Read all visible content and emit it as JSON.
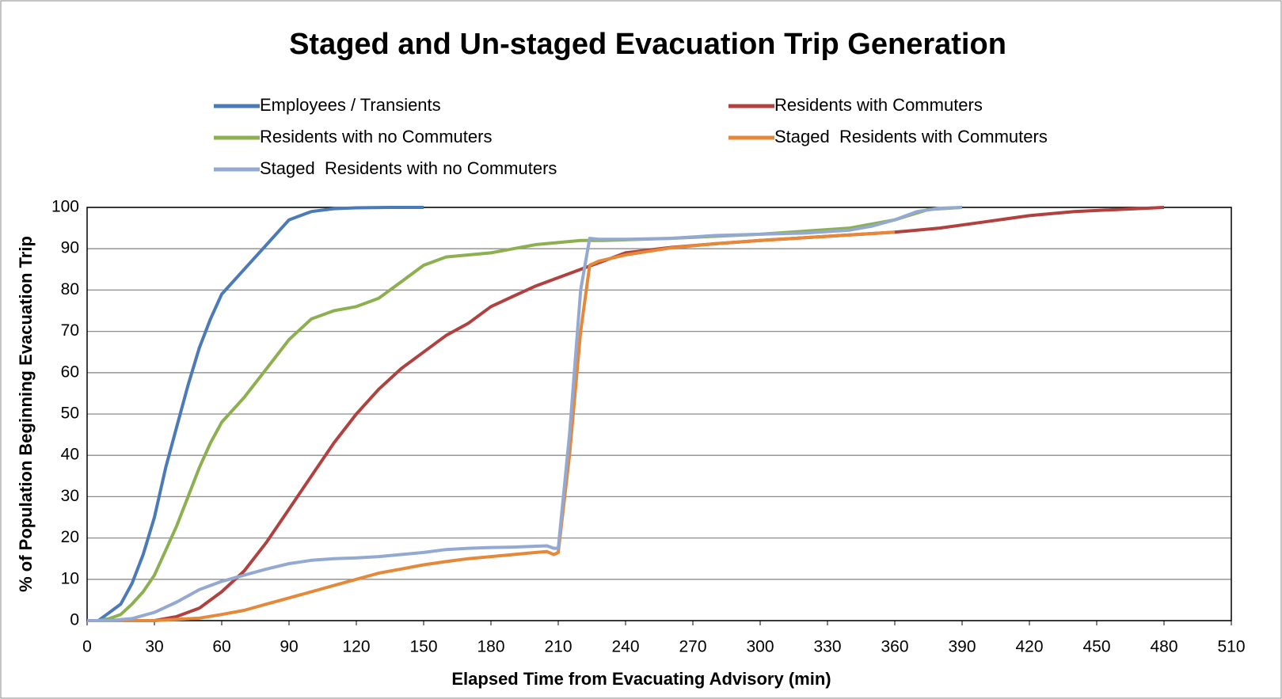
{
  "chart_data": {
    "type": "line",
    "title": "Staged and Un-staged Evacuation Trip Generation",
    "x_label": "Elapsed Time from Evacuating Advisory (min)",
    "y_label": "% of Population Beginning Evacuation Trip",
    "xlim": [
      0,
      510
    ],
    "xticks": [
      0,
      30,
      60,
      90,
      120,
      150,
      180,
      210,
      240,
      270,
      300,
      330,
      360,
      390,
      420,
      450,
      480,
      510
    ],
    "ylim": [
      0,
      100
    ],
    "yticks": [
      0,
      10,
      20,
      30,
      40,
      50,
      60,
      70,
      80,
      90,
      100
    ],
    "grid": true,
    "series": [
      {
        "name": "Employees / Transients",
        "color": "#4a7ab8",
        "x": [
          0,
          5,
          10,
          15,
          20,
          25,
          30,
          35,
          40,
          45,
          50,
          55,
          60,
          70,
          80,
          90,
          100,
          110,
          120,
          135,
          150
        ],
        "values": [
          0,
          0,
          2,
          4,
          9,
          16,
          25,
          37,
          47,
          57,
          66,
          73,
          79,
          85,
          91,
          97,
          99,
          99.7,
          99.9,
          100,
          100
        ]
      },
      {
        "name": "Residents with Commuters",
        "color": "#b0413e",
        "x": [
          0,
          10,
          20,
          30,
          40,
          50,
          60,
          70,
          80,
          90,
          100,
          110,
          120,
          130,
          140,
          150,
          160,
          170,
          180,
          190,
          200,
          210,
          220,
          230,
          240,
          260,
          280,
          300,
          330,
          360,
          380,
          400,
          420,
          440,
          460,
          480
        ],
        "values": [
          0,
          0,
          0,
          0,
          1,
          3,
          7,
          12,
          19,
          27,
          35,
          43,
          50,
          56,
          61,
          65,
          69,
          72,
          76,
          78.5,
          81,
          83,
          85,
          87,
          89,
          90.3,
          91.2,
          92,
          93,
          94,
          95,
          96.5,
          98,
          99,
          99.5,
          100
        ]
      },
      {
        "name": "Residents with no Commuters",
        "color": "#8cb050",
        "x": [
          0,
          5,
          10,
          15,
          20,
          25,
          30,
          35,
          40,
          45,
          50,
          55,
          60,
          70,
          80,
          90,
          100,
          110,
          120,
          130,
          140,
          150,
          160,
          170,
          180,
          190,
          200,
          210,
          220,
          230,
          260,
          300,
          340,
          360,
          375,
          390
        ],
        "values": [
          0,
          0,
          0.5,
          1.5,
          4,
          7,
          11,
          17,
          23,
          30,
          37,
          43,
          48,
          54,
          61,
          68,
          73,
          75,
          76,
          78,
          82,
          86,
          88,
          88.5,
          89,
          90,
          91,
          91.5,
          92,
          92,
          92.5,
          93.5,
          95,
          97,
          99.5,
          100
        ]
      },
      {
        "name": "Staged  Residents with Commuters",
        "color": "#e5883a",
        "x": [
          0,
          30,
          40,
          50,
          60,
          70,
          80,
          90,
          100,
          110,
          120,
          130,
          140,
          150,
          160,
          170,
          180,
          190,
          200,
          205,
          208,
          210,
          215,
          220,
          224,
          228,
          240,
          260,
          280,
          300,
          330,
          360
        ],
        "values": [
          0,
          0,
          0.3,
          0.6,
          1.5,
          2.5,
          4,
          5.5,
          7,
          8.5,
          10,
          11.5,
          12.5,
          13.5,
          14.3,
          15,
          15.5,
          16,
          16.5,
          16.7,
          16,
          16.5,
          40,
          70,
          86,
          87,
          88.5,
          90.2,
          91.2,
          92,
          93,
          94
        ]
      },
      {
        "name": "Staged  Residents with no Commuters",
        "color": "#93a9d2",
        "x": [
          0,
          10,
          20,
          30,
          40,
          50,
          60,
          70,
          80,
          90,
          100,
          110,
          120,
          130,
          140,
          150,
          160,
          170,
          180,
          190,
          200,
          205,
          208,
          210,
          215,
          220,
          224,
          228,
          240,
          260,
          280,
          300,
          320,
          340,
          350,
          360,
          370,
          380,
          390
        ],
        "values": [
          0,
          0,
          0.5,
          2,
          4.5,
          7.5,
          9.5,
          11,
          12.5,
          13.8,
          14.6,
          15,
          15.2,
          15.5,
          16,
          16.5,
          17.2,
          17.5,
          17.7,
          17.8,
          18,
          18.1,
          17.5,
          17.5,
          45,
          80,
          92.5,
          92.3,
          92.3,
          92.5,
          93.2,
          93.5,
          93.8,
          94.5,
          95.5,
          97,
          99,
          99.8,
          100
        ]
      }
    ]
  }
}
